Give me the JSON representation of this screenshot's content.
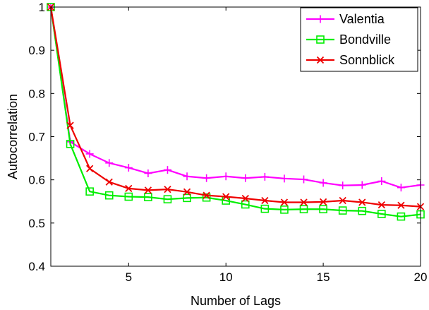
{
  "chart_data": {
    "type": "line",
    "title": "",
    "xlabel": "Number of Lags",
    "ylabel": "Autocorrelation",
    "xlim": [
      1,
      20
    ],
    "ylim": [
      0.4,
      1.0
    ],
    "x_ticks": [
      5,
      10,
      15,
      20
    ],
    "y_ticks": [
      0.4,
      0.5,
      0.6,
      0.7,
      0.8,
      0.9,
      1
    ],
    "x_tick_labels": [
      "5",
      "10",
      "15",
      "20"
    ],
    "y_tick_labels": [
      "0.4",
      "0.5",
      "0.6",
      "0.7",
      "0.8",
      "0.9",
      "1"
    ],
    "grid": false,
    "legend_position": "top-right",
    "x": [
      1,
      2,
      3,
      4,
      5,
      6,
      7,
      8,
      9,
      10,
      11,
      12,
      13,
      14,
      15,
      16,
      17,
      18,
      19,
      20
    ],
    "series": [
      {
        "name": "Valentia",
        "color": "#ff00ff",
        "marker": "plus",
        "values": [
          1.0,
          0.688,
          0.66,
          0.639,
          0.628,
          0.615,
          0.623,
          0.608,
          0.604,
          0.608,
          0.604,
          0.607,
          0.603,
          0.601,
          0.593,
          0.587,
          0.588,
          0.597,
          0.582,
          0.588
        ]
      },
      {
        "name": "Bondville",
        "color": "#00ee00",
        "marker": "square",
        "values": [
          1.0,
          0.683,
          0.573,
          0.564,
          0.561,
          0.56,
          0.555,
          0.558,
          0.559,
          0.552,
          0.543,
          0.533,
          0.531,
          0.532,
          0.532,
          0.529,
          0.528,
          0.521,
          0.515,
          0.52
        ]
      },
      {
        "name": "Sonnblick",
        "color": "#ee0000",
        "marker": "x",
        "values": [
          1.0,
          0.726,
          0.626,
          0.595,
          0.58,
          0.576,
          0.578,
          0.572,
          0.564,
          0.561,
          0.557,
          0.552,
          0.548,
          0.548,
          0.549,
          0.552,
          0.548,
          0.542,
          0.541,
          0.538
        ]
      }
    ]
  }
}
